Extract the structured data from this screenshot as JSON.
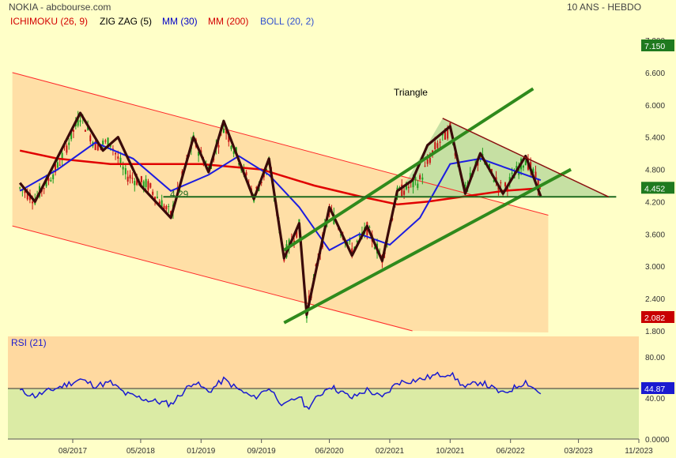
{
  "header": {
    "left": "NOKIA - abcbourse.com",
    "right": "10 ANS - HEBDO"
  },
  "legend": [
    {
      "label": "ICHIMOKU (26, 9)",
      "color": "#d40000"
    },
    {
      "label": "ZIG ZAG (5)",
      "color": "#000000"
    },
    {
      "label": "MM (30)",
      "color": "#0000c8"
    },
    {
      "label": "MM (200)",
      "color": "#d40000"
    },
    {
      "label": "BOLL (20, 2)",
      "color": "#3050d0"
    }
  ],
  "annotations": {
    "triangle": "Triangle",
    "support": "4.29"
  },
  "colors": {
    "background": "#ffffc8",
    "panel": "#f9e0a0",
    "channel_fill": "#ffd9a0",
    "triangle_fill": "#b8d89a",
    "rsi_upper": "#ffd9a0",
    "rsi_lower": "#dbeba5",
    "trendline": "#2f8a1c",
    "channel_line": "#ff2a2a",
    "mm30": "#1c1ce0",
    "mm200": "#e00000",
    "zigzag": "#3a0a0a",
    "up": "#1e9e1e",
    "down": "#c81414",
    "last_price_badge": "#1f7a1f",
    "low_badge": "#c80000",
    "rsi_line": "#1a1ad0"
  },
  "chart_data": [
    {
      "type": "line",
      "title": "NOKIA",
      "yticks": [
        "7.200",
        "6.600",
        "6.000",
        "5.400",
        "4.800",
        "4.200",
        "3.600",
        "3.000",
        "2.400",
        "1.800"
      ],
      "ylim": [
        1.8,
        7.2
      ],
      "x_labels": [
        "08/2017",
        "05/2018",
        "01/2019",
        "09/2019",
        "06/2020",
        "02/2021",
        "10/2021",
        "06/2022",
        "03/2023",
        "11/2023"
      ],
      "badges": {
        "last": "7.150",
        "current": "4.452",
        "low": "2.082"
      },
      "zigzag": [
        [
          "2017-01",
          4.55
        ],
        [
          "2017-03",
          4.2
        ],
        [
          "2017-09",
          5.85
        ],
        [
          "2017-12",
          5.15
        ],
        [
          "2018-02",
          5.4
        ],
        [
          "2018-05",
          4.5
        ],
        [
          "2018-09",
          3.9
        ],
        [
          "2018-12",
          5.4
        ],
        [
          "2019-02",
          4.75
        ],
        [
          "2019-04",
          5.7
        ],
        [
          "2019-08",
          4.25
        ],
        [
          "2019-10",
          5.0
        ],
        [
          "2019-12",
          3.15
        ],
        [
          "2020-02",
          3.8
        ],
        [
          "2020-03",
          2.1
        ],
        [
          "2020-06",
          4.1
        ],
        [
          "2020-09",
          3.2
        ],
        [
          "2020-11",
          3.75
        ],
        [
          "2021-01",
          3.1
        ],
        [
          "2021-03",
          4.4
        ],
        [
          "2021-05",
          4.6
        ],
        [
          "2021-07",
          5.25
        ],
        [
          "2021-10",
          5.6
        ],
        [
          "2021-12",
          4.35
        ],
        [
          "2022-02",
          5.1
        ],
        [
          "2022-05",
          4.35
        ],
        [
          "2022-08",
          5.05
        ],
        [
          "2022-10",
          4.3
        ]
      ],
      "mm30": [
        [
          "2017-01",
          4.4
        ],
        [
          "2017-06",
          4.8
        ],
        [
          "2017-11",
          5.3
        ],
        [
          "2018-04",
          5.0
        ],
        [
          "2018-09",
          4.4
        ],
        [
          "2019-02",
          4.7
        ],
        [
          "2019-06",
          5.05
        ],
        [
          "2019-10",
          4.7
        ],
        [
          "2020-02",
          4.1
        ],
        [
          "2020-06",
          3.3
        ],
        [
          "2020-10",
          3.6
        ],
        [
          "2021-02",
          3.4
        ],
        [
          "2021-06",
          3.9
        ],
        [
          "2021-10",
          4.9
        ],
        [
          "2022-02",
          5.0
        ],
        [
          "2022-06",
          4.8
        ],
        [
          "2022-10",
          4.6
        ]
      ],
      "mm200": [
        [
          "2017-01",
          5.15
        ],
        [
          "2017-06",
          5.0
        ],
        [
          "2018-01",
          4.9
        ],
        [
          "2019-01",
          4.9
        ],
        [
          "2019-09",
          4.8
        ],
        [
          "2020-04",
          4.5
        ],
        [
          "2020-10",
          4.3
        ],
        [
          "2021-03",
          4.15
        ],
        [
          "2021-07",
          4.2
        ],
        [
          "2021-12",
          4.3
        ],
        [
          "2022-05",
          4.4
        ],
        [
          "2022-10",
          4.45
        ]
      ],
      "channel_upper": [
        [
          "2016-12",
          6.6
        ],
        [
          "2022-11",
          3.95
        ]
      ],
      "channel_lower": [
        [
          "2016-12",
          3.75
        ],
        [
          "2021-05",
          1.8
        ]
      ],
      "uptrend_upper": [
        [
          "2019-12",
          3.3
        ],
        [
          "2022-09",
          6.3
        ]
      ],
      "uptrend_lower": [
        [
          "2019-12",
          1.95
        ],
        [
          "2023-02",
          4.8
        ]
      ],
      "triangle_top": [
        [
          "2021-09",
          5.75
        ],
        [
          "2023-07",
          4.29
        ]
      ],
      "support_line": [
        [
          "2018-08",
          4.29
        ],
        [
          "2023-08",
          4.29
        ]
      ],
      "series_price": [
        [
          "2017-01",
          4.45
        ],
        [
          "2017-03",
          4.25
        ],
        [
          "2017-06",
          4.85
        ],
        [
          "2017-09",
          5.8
        ],
        [
          "2017-11",
          5.25
        ],
        [
          "2018-01",
          5.3
        ],
        [
          "2018-03",
          4.7
        ],
        [
          "2018-06",
          4.5
        ],
        [
          "2018-09",
          3.95
        ],
        [
          "2018-12",
          5.35
        ],
        [
          "2019-02",
          4.8
        ],
        [
          "2019-04",
          5.6
        ],
        [
          "2019-06",
          5.0
        ],
        [
          "2019-08",
          4.3
        ],
        [
          "2019-10",
          4.9
        ],
        [
          "2019-12",
          3.2
        ],
        [
          "2020-02",
          3.75
        ],
        [
          "2020-03",
          2.15
        ],
        [
          "2020-06",
          4.05
        ],
        [
          "2020-09",
          3.3
        ],
        [
          "2020-11",
          3.7
        ],
        [
          "2021-01",
          3.15
        ],
        [
          "2021-03",
          4.35
        ],
        [
          "2021-06",
          4.6
        ],
        [
          "2021-08",
          5.2
        ],
        [
          "2021-10",
          5.55
        ],
        [
          "2021-12",
          4.4
        ],
        [
          "2022-02",
          5.05
        ],
        [
          "2022-05",
          4.4
        ],
        [
          "2022-08",
          5.0
        ],
        [
          "2022-10",
          4.45
        ]
      ]
    },
    {
      "type": "line",
      "title": "RSI (21)",
      "yticks": [
        "80.00",
        "40.00",
        "0.0000"
      ],
      "ylim": [
        0,
        100
      ],
      "current": "44.87",
      "reference": 50,
      "values": [
        [
          "2017-01",
          47
        ],
        [
          "2017-03",
          42
        ],
        [
          "2017-06",
          50
        ],
        [
          "2017-09",
          58
        ],
        [
          "2017-11",
          52
        ],
        [
          "2018-01",
          55
        ],
        [
          "2018-03",
          44
        ],
        [
          "2018-06",
          38
        ],
        [
          "2018-09",
          34
        ],
        [
          "2018-12",
          56
        ],
        [
          "2019-02",
          46
        ],
        [
          "2019-04",
          58
        ],
        [
          "2019-06",
          48
        ],
        [
          "2019-08",
          40
        ],
        [
          "2019-10",
          50
        ],
        [
          "2019-12",
          32
        ],
        [
          "2020-02",
          42
        ],
        [
          "2020-03",
          30
        ],
        [
          "2020-06",
          52
        ],
        [
          "2020-09",
          40
        ],
        [
          "2020-11",
          48
        ],
        [
          "2021-01",
          40
        ],
        [
          "2021-03",
          55
        ],
        [
          "2021-06",
          58
        ],
        [
          "2021-08",
          62
        ],
        [
          "2021-10",
          64
        ],
        [
          "2021-12",
          50
        ],
        [
          "2022-02",
          56
        ],
        [
          "2022-05",
          44
        ],
        [
          "2022-08",
          56
        ],
        [
          "2022-10",
          44
        ]
      ]
    }
  ]
}
